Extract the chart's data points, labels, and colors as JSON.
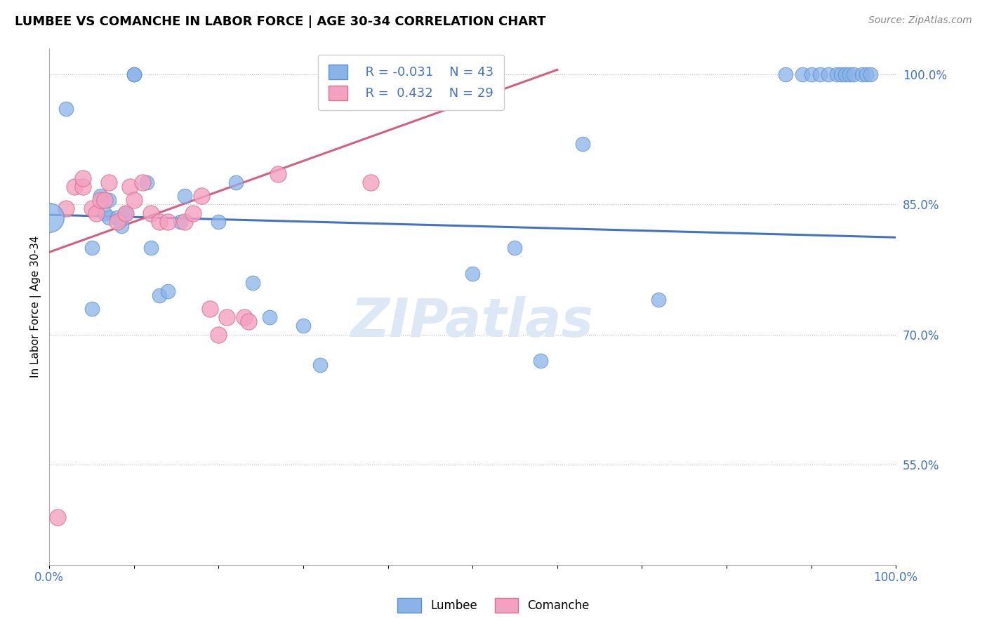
{
  "title": "LUMBEE VS COMANCHE IN LABOR FORCE | AGE 30-34 CORRELATION CHART",
  "source": "Source: ZipAtlas.com",
  "ylabel": "In Labor Force | Age 30-34",
  "xlim": [
    0,
    1.0
  ],
  "ylim": [
    0.435,
    1.03
  ],
  "y_tick_vals_right": [
    0.55,
    0.7,
    0.85,
    1.0
  ],
  "y_tick_labels_right": [
    "55.0%",
    "70.0%",
    "85.0%",
    "100.0%"
  ],
  "legend_r1": "R = -0.031",
  "legend_n1": "N = 43",
  "legend_r2": "R =  0.432",
  "legend_n2": "N = 29",
  "lumbee_color": "#8ab4e8",
  "lumbee_edge_color": "#5a8fd4",
  "comanche_color": "#f4a0c0",
  "comanche_edge_color": "#d4708a",
  "lumbee_trend_color": "#4472c4",
  "comanche_trend_color": "#d46080",
  "watermark": "ZIPatlas",
  "watermark_color": "#dce8f5",
  "lumbee_x": [
    0.02,
    0.05,
    0.05,
    0.06,
    0.065,
    0.07,
    0.07,
    0.08,
    0.085,
    0.09,
    0.09,
    0.1,
    0.1,
    0.115,
    0.12,
    0.13,
    0.14,
    0.155,
    0.16,
    0.2,
    0.22,
    0.24,
    0.26,
    0.3,
    0.32,
    0.5,
    0.55,
    0.58,
    0.63,
    0.72,
    0.87,
    0.89,
    0.9,
    0.91,
    0.92,
    0.93,
    0.935,
    0.94,
    0.945,
    0.95,
    0.96,
    0.965,
    0.97
  ],
  "lumbee_y": [
    0.96,
    0.73,
    0.8,
    0.86,
    0.84,
    0.835,
    0.855,
    0.835,
    0.825,
    0.84,
    0.84,
    1.0,
    1.0,
    0.875,
    0.8,
    0.745,
    0.75,
    0.83,
    0.86,
    0.83,
    0.875,
    0.76,
    0.72,
    0.71,
    0.665,
    0.77,
    0.8,
    0.67,
    0.92,
    0.74,
    1.0,
    1.0,
    1.0,
    1.0,
    1.0,
    1.0,
    1.0,
    1.0,
    1.0,
    1.0,
    1.0,
    1.0,
    1.0
  ],
  "comanche_x": [
    0.01,
    0.02,
    0.03,
    0.04,
    0.04,
    0.05,
    0.055,
    0.06,
    0.065,
    0.07,
    0.08,
    0.09,
    0.095,
    0.1,
    0.11,
    0.12,
    0.13,
    0.14,
    0.16,
    0.17,
    0.18,
    0.19,
    0.2,
    0.21,
    0.23,
    0.235,
    0.27,
    0.38,
    0.48
  ],
  "comanche_y": [
    0.49,
    0.845,
    0.87,
    0.87,
    0.88,
    0.845,
    0.84,
    0.855,
    0.855,
    0.875,
    0.83,
    0.84,
    0.87,
    0.855,
    0.875,
    0.84,
    0.83,
    0.83,
    0.83,
    0.84,
    0.86,
    0.73,
    0.7,
    0.72,
    0.72,
    0.715,
    0.885,
    0.875,
    1.0
  ],
  "lumbee_trend_x": [
    0.0,
    1.0
  ],
  "lumbee_trend_y": [
    0.838,
    0.812
  ],
  "comanche_trend_x": [
    0.0,
    0.6
  ],
  "comanche_trend_y": [
    0.795,
    1.005
  ]
}
